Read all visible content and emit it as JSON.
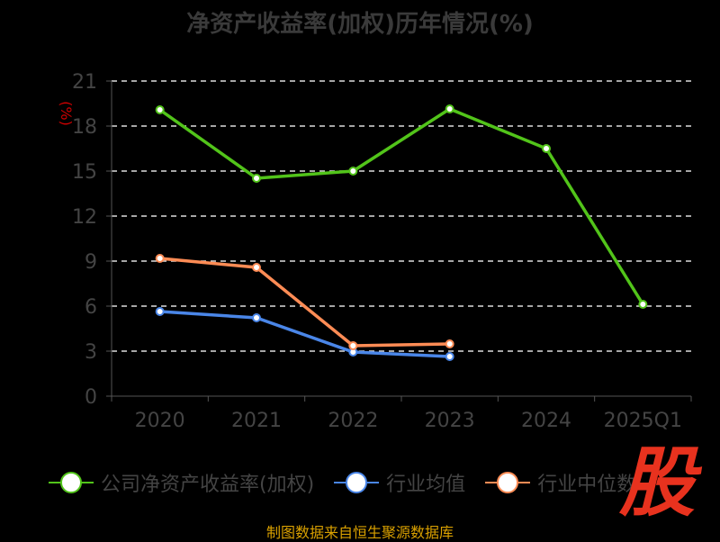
{
  "chart_data": {
    "type": "line",
    "title": "净资产收益率(加权)历年情况(%)",
    "ylabel": "(%)",
    "xlabel": "",
    "categories": [
      "2020",
      "2021",
      "2022",
      "2023",
      "2024",
      "2025Q1"
    ],
    "ylim": [
      0,
      21
    ],
    "yticks": [
      0,
      3,
      6,
      9,
      12,
      15,
      18,
      21
    ],
    "grid": true,
    "legend_position": "bottom",
    "series": [
      {
        "name": "公司净资产收益率(加权)",
        "color": "#52c41a",
        "values": [
          19.08,
          14.52,
          15.0,
          19.14,
          16.5,
          6.12
        ]
      },
      {
        "name": "行业均值",
        "color": "#4a86e8",
        "values": [
          5.64,
          5.22,
          2.94,
          2.64,
          null,
          null
        ]
      },
      {
        "name": "行业中位数",
        "color": "#ff8c55",
        "values": [
          9.18,
          8.58,
          3.36,
          3.48,
          null,
          null
        ]
      }
    ]
  },
  "source": "制图数据来自恒生聚源数据库",
  "logo_text": "股"
}
